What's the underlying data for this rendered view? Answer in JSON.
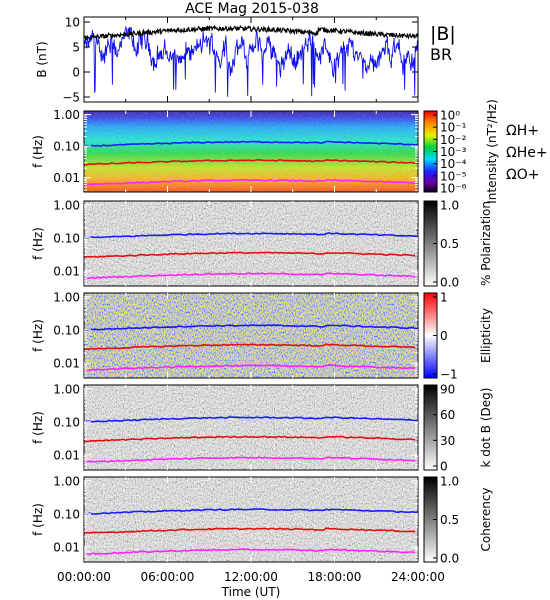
{
  "title": "ACE Mag 2015-038",
  "colors": {
    "b_total": "#000000",
    "b_r": "#1010ee",
    "h_plus": "#1a1aff",
    "he_plus": "#e01010",
    "o_plus": "#ff22ff"
  },
  "legend_top": {
    "b_total": "|B|",
    "b_r": "BR"
  },
  "legend_gyro": {
    "h_plus": "ΩH+",
    "he_plus": "ΩHe+",
    "o_plus": "ΩO+"
  },
  "chart_data": [
    {
      "type": "line",
      "panel": "magnetic-field",
      "ylabel": "B (nT)",
      "ylim": [
        -6,
        11
      ],
      "yticks": [
        -5,
        0,
        5,
        10
      ],
      "xlim": [
        "00:00:00",
        "24:00:00"
      ],
      "series": [
        {
          "name": "|B|",
          "approx_mean": 7.5,
          "approx_range": [
            5.5,
            10
          ]
        },
        {
          "name": "BR",
          "approx_mean": 4,
          "approx_range": [
            -5,
            9
          ]
        }
      ]
    },
    {
      "type": "heatmap",
      "panel": "intensity",
      "ylabel": "f (Hz)",
      "yscale": "log",
      "yticks": [
        "1.00",
        "0.10",
        "0.01"
      ],
      "colorbar": {
        "label": "Intensity (nT²/Hz)",
        "ticks": [
          "10⁰",
          "10⁻¹",
          "10⁻²",
          "10⁻³",
          "10⁻⁴",
          "10⁻⁵",
          "10⁻⁶"
        ]
      }
    },
    {
      "type": "heatmap",
      "panel": "polarization",
      "ylabel": "f (Hz)",
      "yscale": "log",
      "yticks": [
        "1.00",
        "0.10",
        "0.01"
      ],
      "colorbar": {
        "label": "% Polarization",
        "ticks": [
          "1.0",
          "0.5",
          "0.0"
        ]
      }
    },
    {
      "type": "heatmap",
      "panel": "ellipticity",
      "ylabel": "f (Hz)",
      "yscale": "log",
      "yticks": [
        "1.00",
        "0.10",
        "0.01"
      ],
      "colorbar": {
        "label": "Ellipticity",
        "ticks": [
          "1",
          "0",
          "−1"
        ]
      }
    },
    {
      "type": "heatmap",
      "panel": "k-dot-b",
      "ylabel": "f (Hz)",
      "yscale": "log",
      "yticks": [
        "1.00",
        "0.10",
        "0.01"
      ],
      "colorbar": {
        "label": "k dot B (Deg)",
        "ticks": [
          "90",
          "60",
          "30",
          "0"
        ]
      }
    },
    {
      "type": "heatmap",
      "panel": "coherency",
      "ylabel": "f (Hz)",
      "yscale": "log",
      "yticks": [
        "1.00",
        "0.10",
        "0.01"
      ],
      "colorbar": {
        "label": "Coherency",
        "ticks": [
          "1.0",
          "0.5",
          "0.0"
        ]
      }
    }
  ],
  "gyrofrequency_lines_hz": {
    "H+": 0.115,
    "He+": 0.03,
    "O+": 0.007
  },
  "xaxis": {
    "label": "Time (UT)",
    "ticks": [
      "00:00:00",
      "06:00:00",
      "12:00:00",
      "18:00:00",
      "24:00:00"
    ]
  }
}
